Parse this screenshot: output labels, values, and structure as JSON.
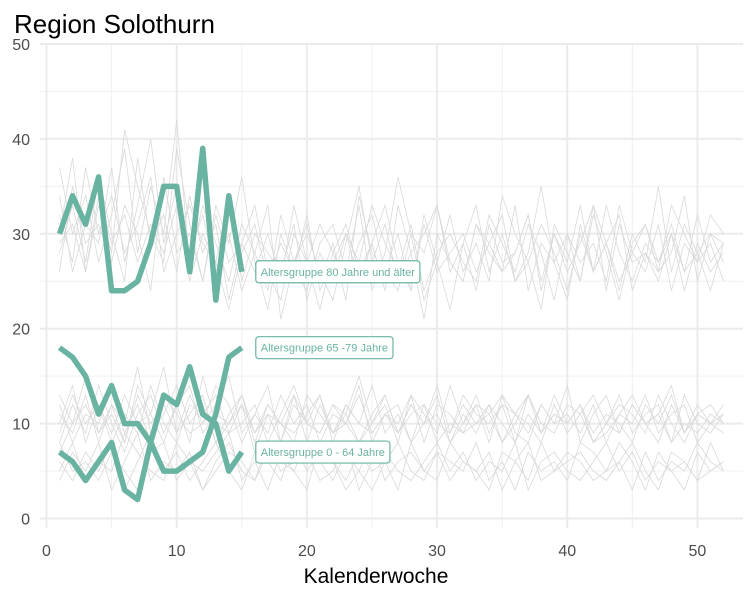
{
  "chart_data": {
    "type": "line",
    "title": "Region Solothurn",
    "xlabel": "Kalenderwoche",
    "ylabel": "",
    "xlim": [
      -0.5,
      53.5
    ],
    "ylim": [
      -1,
      50
    ],
    "x_ticks": [
      0,
      10,
      20,
      30,
      40,
      50
    ],
    "y_ticks": [
      0,
      10,
      20,
      30,
      40,
      50
    ],
    "grid": true,
    "highlight_color": "#69b3a2",
    "background_color": "#d9d9d9",
    "series": [
      {
        "name": "Altersgruppe 80 Jahre und älter",
        "x": [
          1,
          2,
          3,
          4,
          5,
          6,
          7,
          8,
          9,
          10,
          11,
          12,
          13,
          14,
          15
        ],
        "values": [
          30,
          34,
          31,
          36,
          24,
          24,
          25,
          29,
          35,
          35,
          26,
          39,
          23,
          34,
          26
        ]
      },
      {
        "name": "Altersgruppe 65 -79 Jahre",
        "x": [
          1,
          2,
          3,
          4,
          5,
          6,
          7,
          8,
          9,
          10,
          11,
          12,
          13,
          14,
          15
        ],
        "values": [
          18,
          17,
          15,
          11,
          14,
          10,
          10,
          8,
          5,
          5,
          6,
          7,
          11,
          17,
          18
        ]
      },
      {
        "name": "Altersgruppe 0 - 64 Jahre",
        "x": [
          1,
          2,
          3,
          4,
          5,
          6,
          7,
          8,
          9,
          10,
          11,
          12,
          13,
          14,
          15
        ],
        "values": [
          7,
          6,
          4,
          6,
          8,
          3,
          2,
          8,
          13,
          12,
          16,
          11,
          10,
          5,
          7
        ]
      }
    ],
    "background_series": [
      [
        30,
        38,
        26,
        33,
        28,
        41,
        35,
        30,
        27,
        39,
        31,
        25,
        33,
        29,
        36,
        27,
        22,
        30,
        26,
        24,
        29,
        31,
        26,
        33,
        24,
        28,
        36,
        30,
        23,
        27,
        32,
        26,
        29,
        25,
        34,
        30,
        27,
        22,
        31,
        28,
        25,
        33,
        29,
        24,
        30,
        27,
        35,
        26,
        31,
        28,
        24,
        29
      ],
      [
        34,
        26,
        31,
        29,
        37,
        27,
        33,
        40,
        29,
        35,
        28,
        32,
        26,
        30,
        24,
        28,
        33,
        21,
        27,
        31,
        25,
        29,
        23,
        34,
        28,
        26,
        30,
        24,
        32,
        27,
        22,
        29,
        33,
        26,
        30,
        25,
        28,
        35,
        27,
        23,
        31,
        26,
        29,
        32,
        24,
        28,
        26,
        33,
        30,
        27,
        29,
        25
      ],
      [
        28,
        33,
        27,
        36,
        30,
        25,
        38,
        29,
        32,
        26,
        34,
        28,
        31,
        23,
        29,
        26,
        30,
        25,
        33,
        27,
        22,
        28,
        31,
        26,
        29,
        24,
        33,
        28,
        21,
        30,
        27,
        25,
        31,
        28,
        26,
        33,
        24,
        29,
        27,
        30,
        25,
        32,
        28,
        23,
        29,
        31,
        26,
        28,
        34,
        25,
        30,
        27
      ],
      [
        37,
        30,
        34,
        27,
        32,
        39,
        28,
        35,
        30,
        42,
        27,
        33,
        29,
        25,
        31,
        28,
        24,
        32,
        27,
        30,
        26,
        23,
        29,
        35,
        27,
        31,
        25,
        28,
        30,
        33,
        26,
        29,
        24,
        31,
        27,
        28,
        32,
        25,
        30,
        26,
        29,
        33,
        24,
        31,
        27,
        28,
        25,
        30,
        26,
        32,
        27,
        29
      ],
      [
        26,
        35,
        29,
        31,
        27,
        33,
        30,
        24,
        36,
        28,
        30,
        25,
        32,
        27,
        29,
        33,
        26,
        23,
        30,
        27,
        31,
        28,
        25,
        29,
        32,
        26,
        24,
        30,
        28,
        33,
        27,
        25,
        31,
        29,
        26,
        28,
        32,
        24,
        30,
        27,
        33,
        26,
        29,
        25,
        28,
        31,
        27,
        30,
        24,
        29,
        26,
        28
      ],
      [
        32,
        27,
        37,
        30,
        34,
        28,
        31,
        36,
        26,
        30,
        33,
        29,
        27,
        34,
        25,
        30,
        28,
        26,
        31,
        23,
        28,
        25,
        30,
        27,
        33,
        29,
        26,
        31,
        24,
        28,
        30,
        27,
        25,
        32,
        29,
        26,
        31,
        28,
        23,
        30,
        27,
        29,
        25,
        33,
        28,
        26,
        31,
        24,
        29,
        27,
        32,
        30
      ],
      [
        29,
        31,
        26,
        34,
        29,
        32,
        27,
        31,
        28,
        33,
        25,
        30,
        27,
        22,
        28,
        31,
        25,
        29,
        26,
        32,
        24,
        27,
        30,
        25,
        29,
        33,
        27,
        24,
        31,
        26,
        28,
        30,
        26,
        29,
        32,
        25,
        27,
        31,
        28,
        24,
        30,
        26,
        33,
        28,
        25,
        29,
        27,
        31,
        26,
        28,
        30,
        29
      ],
      [
        13,
        10,
        15,
        9,
        12,
        8,
        14,
        11,
        16,
        9,
        13,
        10,
        12,
        15,
        9,
        11,
        14,
        8,
        12,
        10,
        13,
        9,
        11,
        15,
        10,
        12,
        8,
        13,
        11,
        9,
        14,
        10,
        12,
        8,
        13,
        11,
        9,
        12,
        10,
        14,
        8,
        11,
        13,
        9,
        12,
        10,
        11,
        14,
        9,
        12,
        10,
        11
      ],
      [
        8,
        12,
        9,
        14,
        10,
        7,
        11,
        13,
        9,
        12,
        8,
        15,
        10,
        9,
        12,
        7,
        11,
        10,
        13,
        8,
        12,
        9,
        10,
        14,
        8,
        11,
        9,
        12,
        10,
        13,
        8,
        11,
        9,
        12,
        10,
        8,
        13,
        9,
        11,
        10,
        12,
        8,
        10,
        13,
        9,
        11,
        12,
        8,
        10,
        9,
        11,
        10
      ],
      [
        11,
        9,
        13,
        8,
        12,
        10,
        16,
        9,
        11,
        14,
        10,
        12,
        8,
        11,
        13,
        9,
        12,
        10,
        8,
        13,
        11,
        9,
        12,
        10,
        14,
        9,
        11,
        8,
        12,
        10,
        9,
        13,
        11,
        10,
        12,
        8,
        11,
        9,
        13,
        10,
        12,
        9,
        11,
        10,
        8,
        12,
        10,
        13,
        9,
        11,
        10,
        12
      ],
      [
        9,
        13,
        10,
        12,
        8,
        11,
        9,
        14,
        10,
        8,
        12,
        11,
        13,
        9,
        10,
        12,
        8,
        11,
        14,
        10,
        9,
        12,
        10,
        8,
        11,
        13,
        9,
        12,
        10,
        11,
        8,
        10,
        13,
        9,
        12,
        11,
        10,
        8,
        12,
        9,
        11,
        13,
        10,
        9,
        12,
        10,
        11,
        8,
        13,
        10,
        9,
        11
      ],
      [
        12,
        8,
        11,
        10,
        14,
        9,
        12,
        8,
        13,
        11,
        9,
        10,
        14,
        12,
        8,
        11,
        9,
        13,
        10,
        12,
        8,
        11,
        10,
        13,
        9,
        11,
        12,
        8,
        10,
        14,
        9,
        12,
        10,
        11,
        13,
        9,
        8,
        12,
        10,
        11,
        9,
        12,
        8,
        11,
        10,
        13,
        9,
        11,
        12,
        8,
        10,
        11
      ],
      [
        10,
        14,
        8,
        12,
        9,
        13,
        10,
        11,
        8,
        12,
        14,
        9,
        11,
        10,
        13,
        8,
        12,
        10,
        9,
        11,
        13,
        8,
        12,
        10,
        9,
        11,
        10,
        13,
        8,
        12,
        11,
        9,
        10,
        12,
        8,
        11,
        13,
        10,
        9,
        12,
        11,
        8,
        10,
        12,
        11,
        9,
        13,
        10,
        8,
        11,
        12,
        10
      ],
      [
        7,
        10,
        12,
        9,
        11,
        8,
        13,
        10,
        12,
        9,
        11,
        13,
        8,
        10,
        12,
        9,
        11,
        8,
        13,
        10,
        9,
        12,
        11,
        8,
        10,
        13,
        9,
        11,
        12,
        8,
        10,
        9,
        12,
        11,
        8,
        10,
        13,
        9,
        11,
        10,
        12,
        8,
        9,
        11,
        13,
        10,
        8,
        12,
        9,
        11,
        10,
        9
      ],
      [
        6,
        4,
        7,
        5,
        8,
        3,
        6,
        9,
        5,
        7,
        4,
        6,
        8,
        5,
        3,
        7,
        6,
        4,
        8,
        5,
        7,
        6,
        3,
        5,
        8,
        4,
        6,
        7,
        5,
        4,
        8,
        6,
        5,
        7,
        3,
        6,
        4,
        8,
        5,
        7,
        6,
        4,
        5,
        8,
        6,
        3,
        7,
        5,
        6,
        4,
        8,
        5
      ],
      [
        4,
        7,
        5,
        8,
        3,
        6,
        9,
        4,
        6,
        5,
        7,
        3,
        6,
        8,
        5,
        4,
        7,
        6,
        5,
        3,
        8,
        6,
        4,
        7,
        5,
        6,
        3,
        8,
        5,
        7,
        4,
        6,
        5,
        3,
        7,
        6,
        8,
        4,
        5,
        6,
        7,
        5,
        4,
        6,
        8,
        5,
        3,
        7,
        6,
        4,
        5,
        6
      ],
      [
        8,
        5,
        6,
        4,
        7,
        5,
        3,
        7,
        8,
        4,
        6,
        5,
        7,
        9,
        4,
        6,
        3,
        7,
        5,
        8,
        6,
        4,
        7,
        5,
        3,
        6,
        8,
        5,
        4,
        7,
        6,
        5,
        8,
        4,
        6,
        3,
        7,
        5,
        6,
        4,
        8,
        7,
        5,
        6,
        3,
        7,
        4,
        6,
        5,
        8,
        6,
        5
      ],
      [
        5,
        8,
        4,
        6,
        5,
        9,
        7,
        5,
        4,
        8,
        6,
        3,
        5,
        7,
        6,
        4,
        8,
        5,
        6,
        7,
        4,
        5,
        8,
        3,
        6,
        7,
        5,
        4,
        6,
        8,
        5,
        7,
        4,
        6,
        5,
        8,
        3,
        6,
        7,
        5,
        4,
        6,
        8,
        5,
        7,
        4,
        6,
        5,
        3,
        7,
        5,
        6
      ]
    ]
  }
}
